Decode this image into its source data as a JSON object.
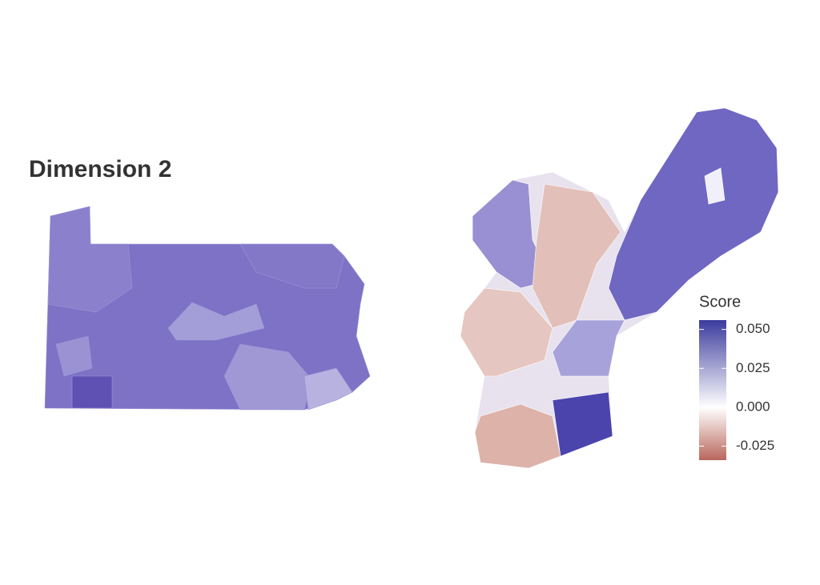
{
  "title": "Dimension 2",
  "legend": {
    "title": "Score",
    "lim": [
      -0.034,
      0.056
    ],
    "ticks": [
      {
        "value": 0.05,
        "label": "0.050"
      },
      {
        "value": 0.025,
        "label": "0.025"
      },
      {
        "value": 0,
        "label": "0.000"
      },
      {
        "value": -0.025,
        "label": "-0.025"
      }
    ],
    "colors": {
      "low": "#b9675c",
      "mid": "#ffffff",
      "high": "#3b3b9e"
    }
  }
}
